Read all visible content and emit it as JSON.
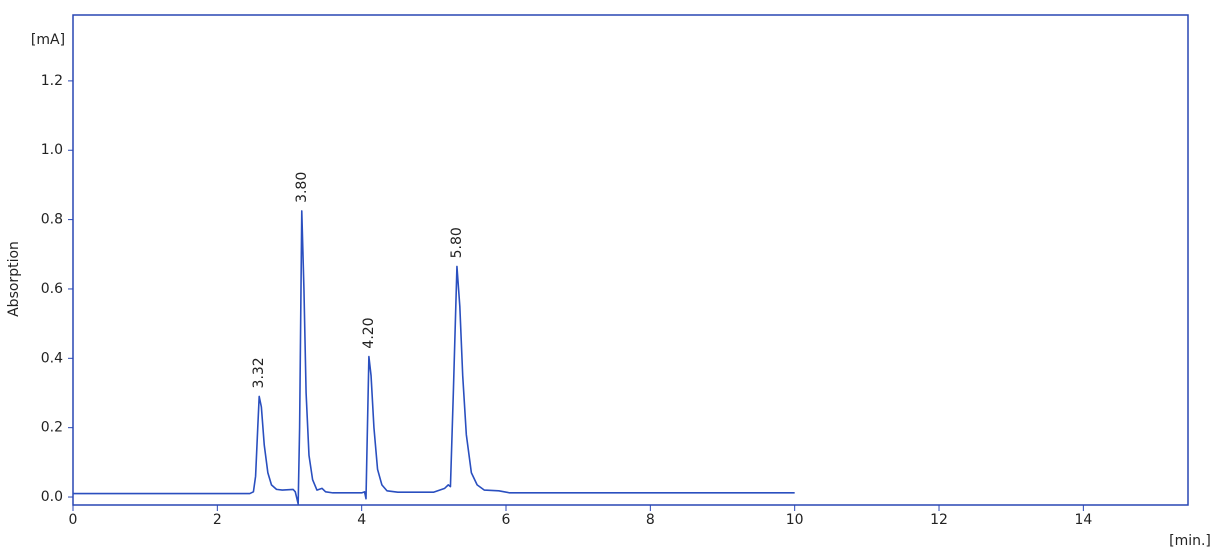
{
  "chart_data": {
    "type": "line",
    "y_unit": "[mA]",
    "y_label": "Absorption",
    "x_label": "[min.]",
    "x": [
      0,
      2.45,
      2.5,
      2.53,
      2.56,
      2.58,
      2.61,
      2.65,
      2.7,
      2.75,
      2.82,
      2.9,
      3.05,
      3.08,
      3.12,
      3.14,
      3.17,
      3.2,
      3.23,
      3.27,
      3.32,
      3.38,
      3.45,
      3.5,
      3.6,
      4.0,
      4.04,
      4.06,
      4.07,
      4.1,
      4.13,
      4.17,
      4.22,
      4.28,
      4.35,
      4.5,
      5.0,
      5.15,
      5.2,
      5.23,
      5.27,
      5.32,
      5.36,
      5.4,
      5.45,
      5.52,
      5.6,
      5.7,
      5.9,
      6.05,
      10.0
    ],
    "series": [
      {
        "color": "#2a4fbf",
        "values": [
          0.01,
          0.01,
          0.015,
          0.06,
          0.2,
          0.29,
          0.26,
          0.15,
          0.07,
          0.035,
          0.022,
          0.02,
          0.022,
          0.015,
          -0.02,
          0.2,
          0.825,
          0.6,
          0.3,
          0.12,
          0.05,
          0.02,
          0.025,
          0.015,
          0.012,
          0.012,
          0.015,
          -0.005,
          0.1,
          0.405,
          0.35,
          0.2,
          0.08,
          0.035,
          0.018,
          0.014,
          0.014,
          0.025,
          0.035,
          0.03,
          0.3,
          0.665,
          0.55,
          0.35,
          0.18,
          0.07,
          0.035,
          0.02,
          0.018,
          0.012,
          0.012
        ]
      }
    ],
    "annotations": [
      {
        "text": "3.32",
        "x": 2.58,
        "y": 0.29
      },
      {
        "text": "3.80",
        "x": 3.17,
        "y": 0.825
      },
      {
        "text": "4.20",
        "x": 4.1,
        "y": 0.405
      },
      {
        "text": "5.80",
        "x": 5.32,
        "y": 0.665
      }
    ],
    "xlim": [
      0,
      15.45
    ],
    "ylim": [
      -0.023,
      1.39
    ],
    "xticks": [
      0,
      2,
      4,
      6,
      8,
      10,
      12,
      14
    ],
    "yticks": [
      {
        "value": 0,
        "label": "0.0"
      },
      0.2,
      0.4,
      0.6,
      0.8,
      {
        "value": 1,
        "label": "1.0"
      },
      1.2
    ],
    "frame_color": "#2846b4"
  }
}
